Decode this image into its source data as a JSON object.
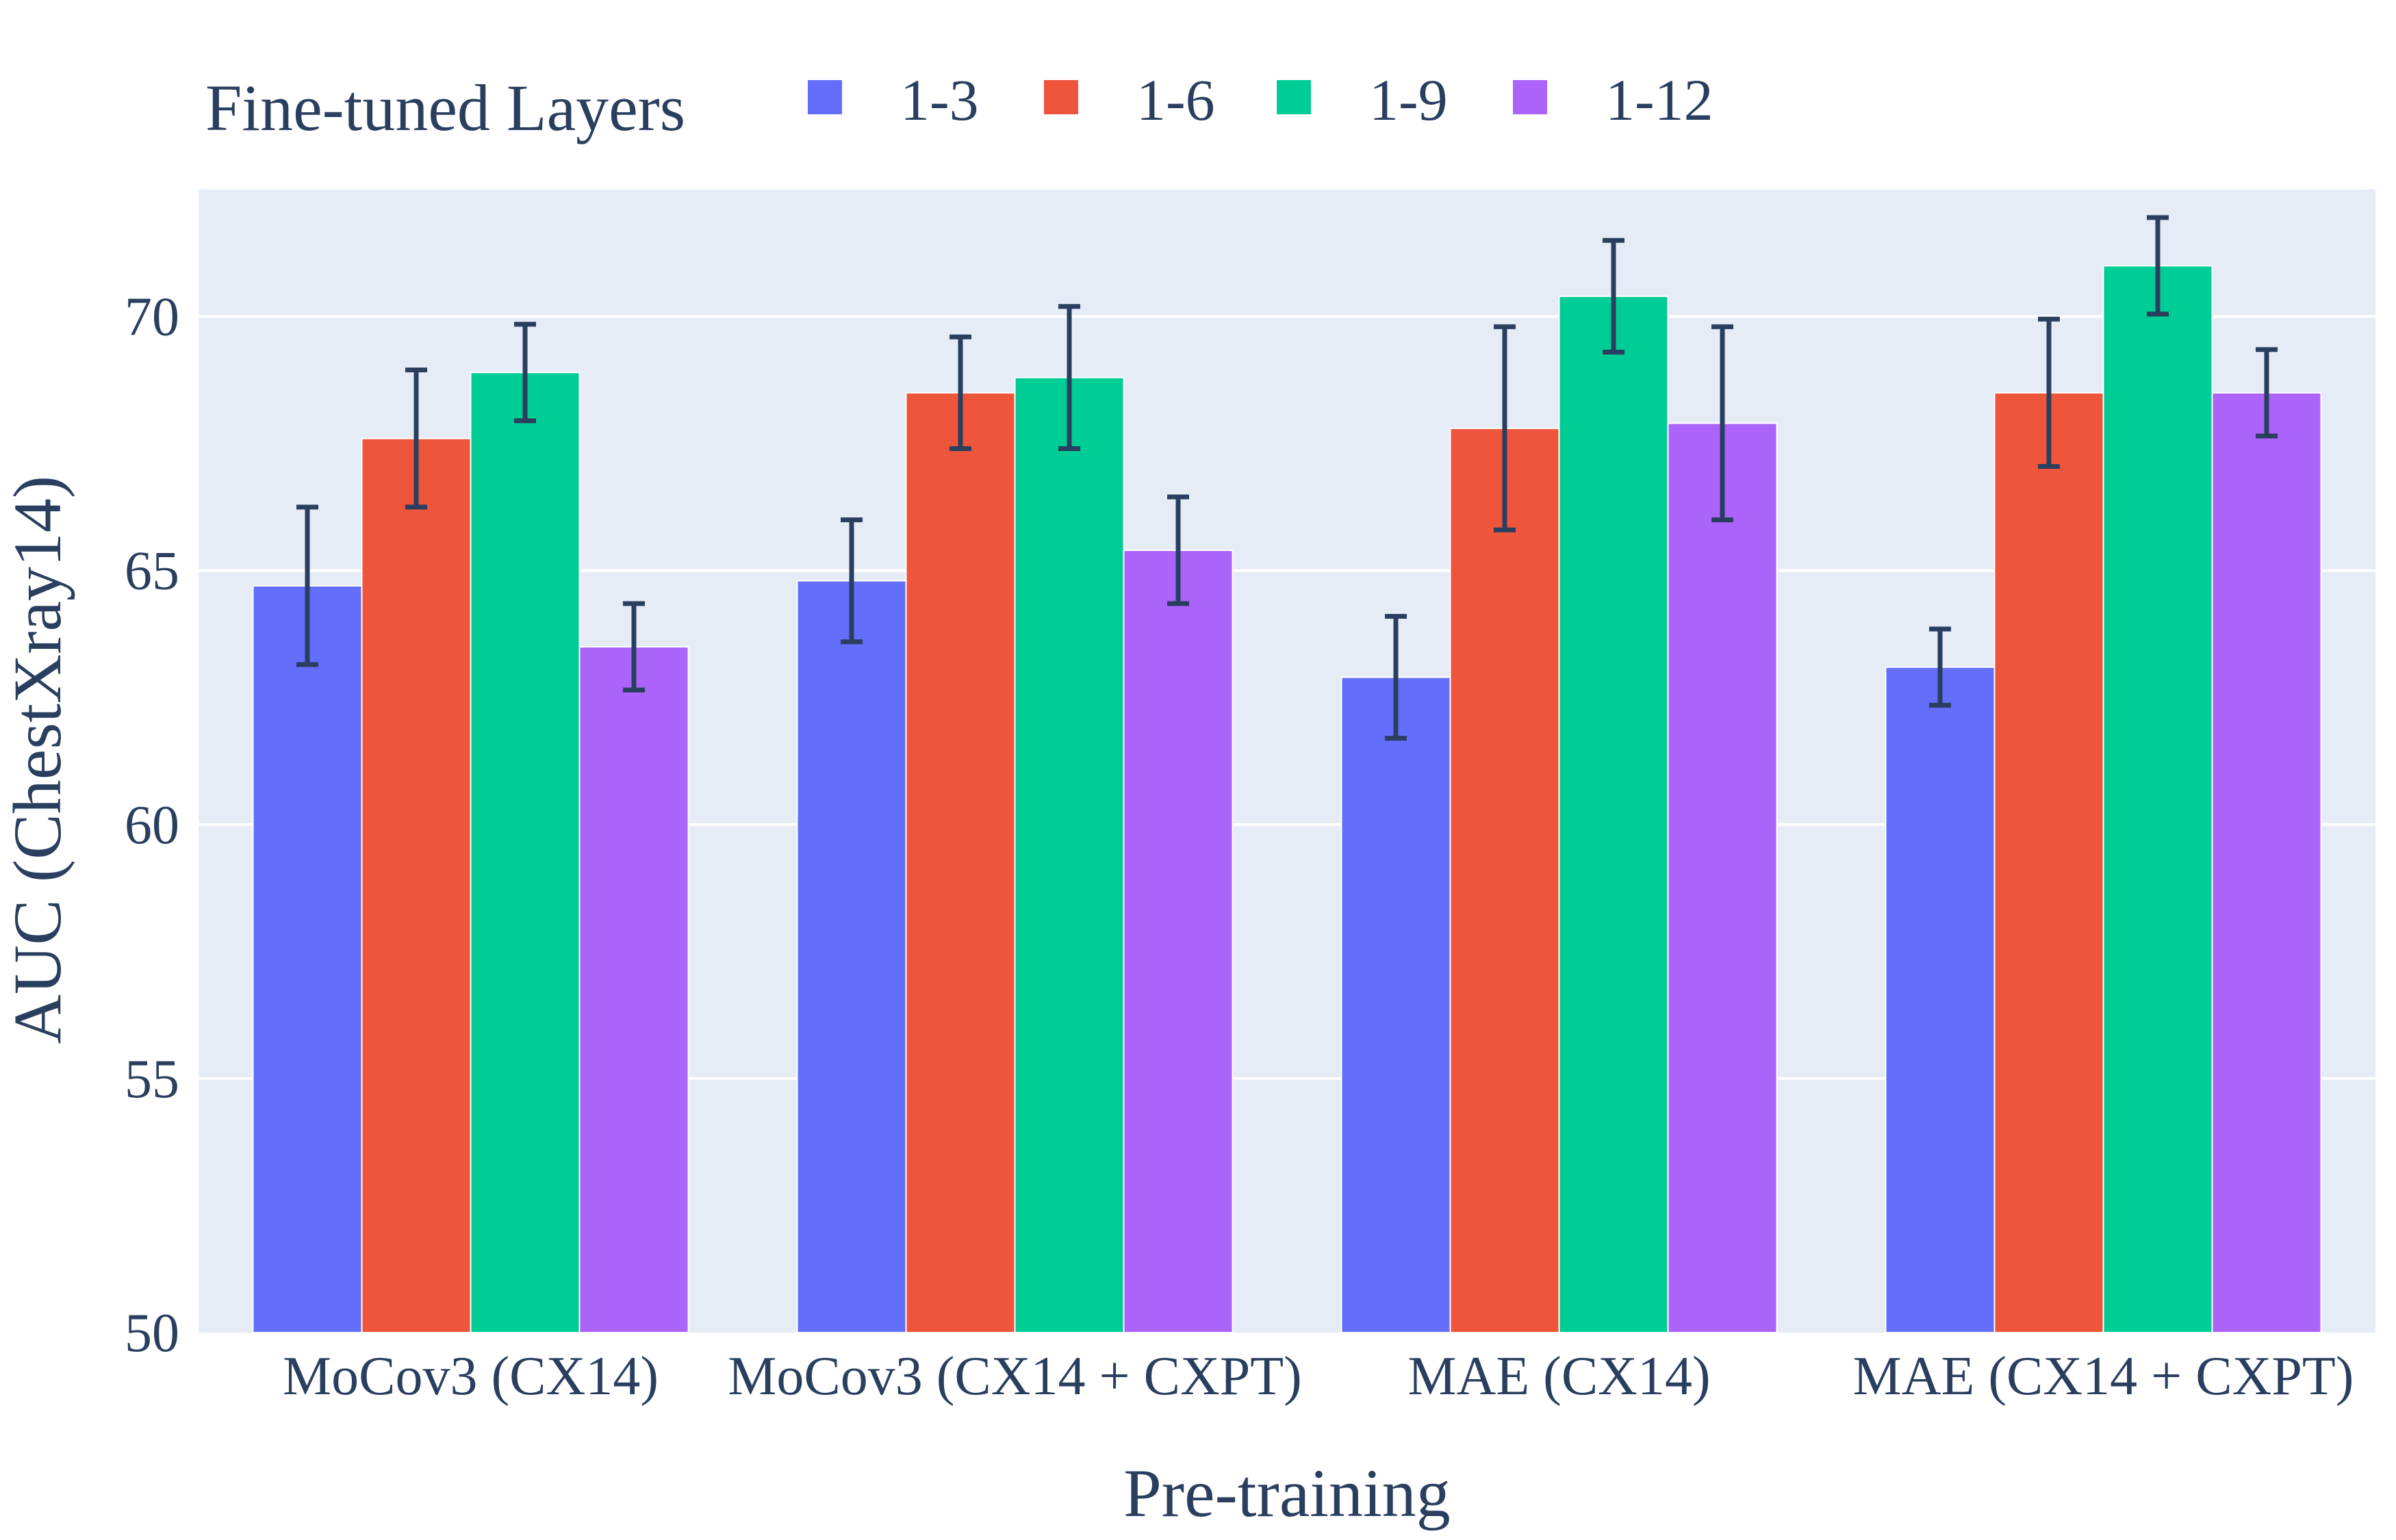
{
  "chart_data": {
    "type": "bar",
    "xlabel": "Pre-training",
    "ylabel": "AUC (ChestXray14)",
    "ylim": [
      50,
      72.5
    ],
    "yticks": [
      50,
      55,
      60,
      65,
      70
    ],
    "grid": true,
    "legend": {
      "title": "Fine-tuned Layers",
      "placement": "top-horizontal"
    },
    "categories": [
      "MoCov3 (CX14)",
      "MoCov3 (CX14 + CXPT)",
      "MAE (CX14)",
      "MAE (CX14 + CXPT)"
    ],
    "series": [
      {
        "name": "1-3",
        "color": "#636efa",
        "values": [
          64.7,
          64.8,
          62.9,
          63.1
        ],
        "errors": [
          1.55,
          1.2,
          1.2,
          0.75
        ]
      },
      {
        "name": "1-6",
        "color": "#ef553b",
        "values": [
          67.6,
          68.5,
          67.8,
          68.5
        ],
        "errors": [
          1.35,
          1.1,
          2.0,
          1.45
        ]
      },
      {
        "name": "1-9",
        "color": "#00cc96",
        "values": [
          68.9,
          68.8,
          70.4,
          71.0
        ],
        "errors": [
          0.95,
          1.4,
          1.1,
          0.95
        ]
      },
      {
        "name": "1-12",
        "color": "#ab63fa",
        "values": [
          63.5,
          65.4,
          67.9,
          68.5
        ],
        "errors": [
          0.85,
          1.05,
          1.9,
          0.85
        ]
      }
    ],
    "colors": {
      "plot_bg": "#e5ecf6",
      "grid": "#ffffff",
      "text": "#2a3f5f",
      "error_bar": "#2a3f5f"
    }
  }
}
